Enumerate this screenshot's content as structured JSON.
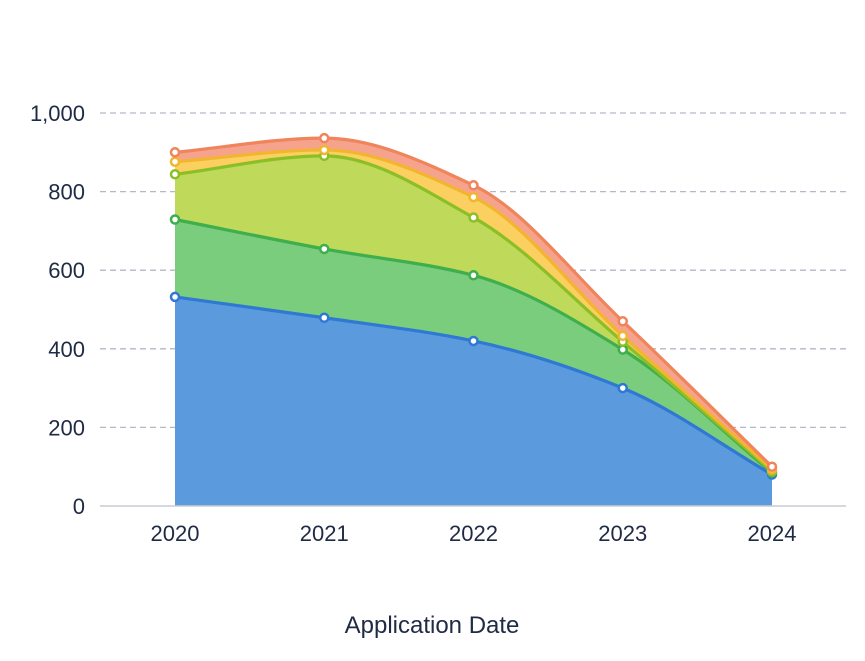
{
  "chart_data": {
    "type": "area",
    "stacked": true,
    "title": "",
    "xlabel": "Application Date",
    "ylabel": "",
    "x": [
      "2020",
      "2021",
      "2022",
      "2023",
      "2024"
    ],
    "ylim": [
      0,
      1000
    ],
    "yticks": [
      0,
      200,
      400,
      600,
      800,
      1000
    ],
    "ytick_labels": [
      "0",
      "200",
      "400",
      "600",
      "800",
      "1,000"
    ],
    "grid": true,
    "legend": "none",
    "series": [
      {
        "color": "#2f78d3",
        "fill": "#5b9bdd",
        "values": [
          532,
          479,
          420,
          300,
          80
        ]
      },
      {
        "color": "#3fae4c",
        "fill": "#7acd7d",
        "values": [
          197,
          175,
          167,
          98,
          5
        ]
      },
      {
        "color": "#8cbf26",
        "fill": "#bfd95a",
        "values": [
          115,
          237,
          147,
          20,
          3
        ]
      },
      {
        "color": "#f2b52e",
        "fill": "#fbcf60",
        "values": [
          32,
          15,
          52,
          15,
          5
        ]
      },
      {
        "color": "#f0845a",
        "fill": "#f6a38e",
        "values": [
          24,
          30,
          30,
          37,
          7
        ]
      }
    ]
  }
}
